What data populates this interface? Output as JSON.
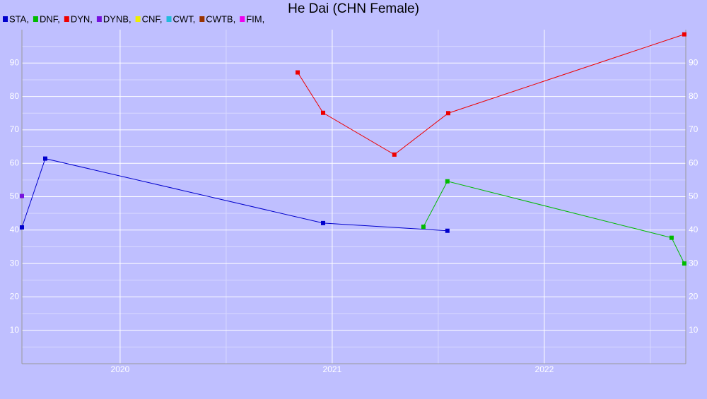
{
  "chart_data": {
    "type": "line",
    "title": "He Dai (CHN Female)",
    "xlim": [
      2019.537,
      2022.667
    ],
    "xticks": [
      2020,
      2021,
      2022
    ],
    "ylim": [
      0,
      100
    ],
    "yticks": [
      10,
      20,
      30,
      40,
      50,
      60,
      70,
      80,
      90
    ],
    "grid": true,
    "series": [
      {
        "name": "STA,",
        "color": "#0000cc",
        "x": [
          2019.537,
          2019.647,
          2020.957,
          2021.543
        ],
        "values": [
          40.8,
          61.4,
          42.1,
          39.8
        ]
      },
      {
        "name": "DNF,",
        "color": "#00bb00",
        "x": [
          2021.43,
          2021.543,
          2022.6,
          2022.66
        ],
        "values": [
          41,
          54.6,
          37.7,
          30
        ]
      },
      {
        "name": "DYN,",
        "color": "#ee0000",
        "x": [
          2020.837,
          2020.957,
          2021.293,
          2021.547,
          2022.66
        ],
        "values": [
          87.2,
          75.1,
          62.6,
          75,
          98.6
        ]
      },
      {
        "name": "DYNB,",
        "color": "#7711dd",
        "x": [
          2019.537
        ],
        "values": [
          50.2
        ]
      },
      {
        "name": "CNF,",
        "color": "#eeee00",
        "x": [],
        "values": []
      },
      {
        "name": "CWT,",
        "color": "#22bbdd",
        "x": [],
        "values": []
      },
      {
        "name": "CWTB,",
        "color": "#993300",
        "x": [],
        "values": []
      },
      {
        "name": "FIM,",
        "color": "#ee00ee",
        "x": [],
        "values": []
      }
    ]
  }
}
